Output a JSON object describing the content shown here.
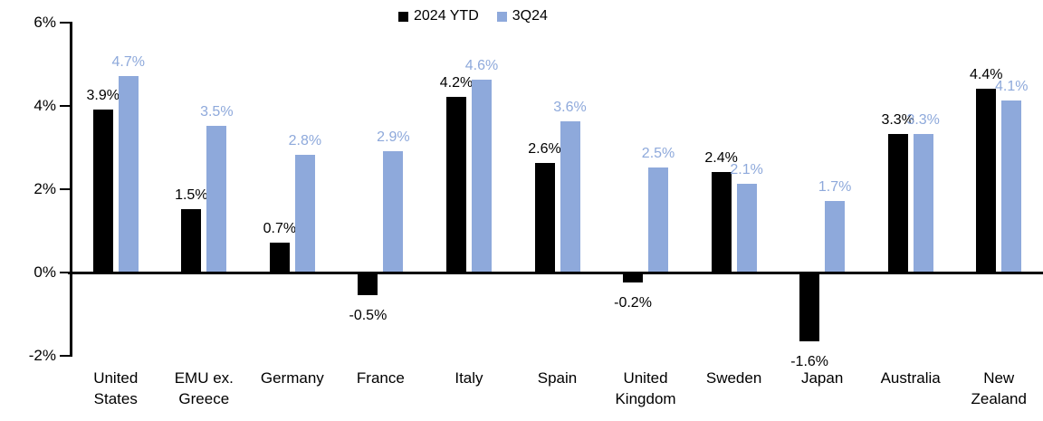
{
  "chart_data": {
    "type": "bar",
    "title": "",
    "xlabel": "",
    "ylabel": "",
    "categories": [
      "United States",
      "EMU ex. Greece",
      "Germany",
      "France",
      "Italy",
      "Spain",
      "United Kingdom",
      "Sweden",
      "Japan",
      "Australia",
      "New Zealand"
    ],
    "series": [
      {
        "name": "2024 YTD",
        "color": "#000000",
        "values": [
          3.9,
          1.5,
          0.7,
          -0.5,
          4.2,
          2.6,
          -0.2,
          2.4,
          -1.6,
          3.3,
          4.4
        ]
      },
      {
        "name": "3Q24",
        "color": "#8EA9DB",
        "values": [
          4.7,
          3.5,
          2.8,
          2.9,
          4.6,
          3.6,
          2.5,
          2.1,
          1.7,
          3.3,
          4.1
        ]
      }
    ],
    "ylim": [
      -2,
      6
    ],
    "yticks": [
      {
        "value": 6,
        "label": "6%"
      },
      {
        "value": 4,
        "label": "4%"
      },
      {
        "value": 2,
        "label": "2%"
      },
      {
        "value": 0,
        "label": "0%"
      },
      {
        "value": -2,
        "label": "-2%"
      }
    ],
    "value_suffix": "%",
    "data_labels": true,
    "grid": false,
    "legend_position": "top-center",
    "background": "#ffffff"
  },
  "legend": {
    "items": [
      {
        "label": "2024 YTD",
        "color": "#000000"
      },
      {
        "label": "3Q24",
        "color": "#8EA9DB"
      }
    ]
  }
}
